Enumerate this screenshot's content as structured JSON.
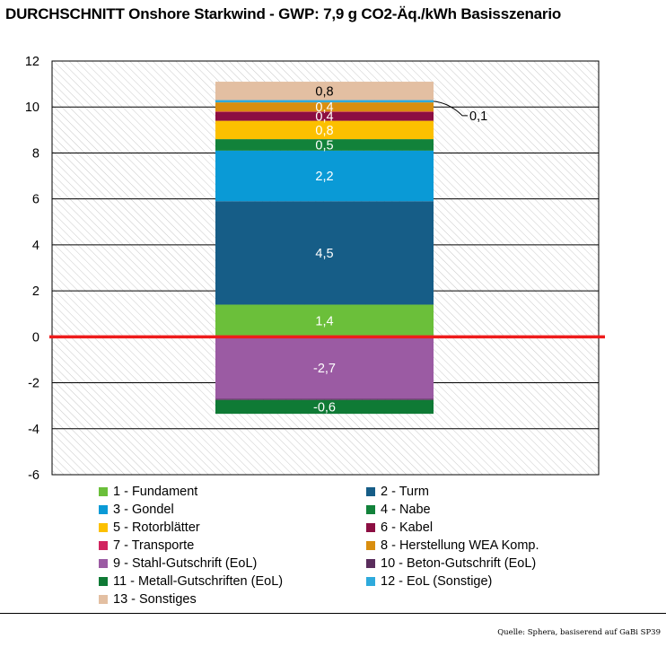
{
  "chart_data": {
    "type": "bar",
    "subtype": "stacked",
    "title": "DURCHSCHNITT Onshore Starkwind - GWP: 7,9 g CO2-Äq./kWh Basisszenario",
    "xlabel": "",
    "ylabel": "",
    "ylim": [
      -6,
      12
    ],
    "yticks": [
      12,
      10,
      8,
      6,
      4,
      2,
      0,
      -2,
      -4,
      -6
    ],
    "grid": true,
    "legend_position": "bottom",
    "series": [
      {
        "name": "1 - Fundament",
        "value": 1.4,
        "label": "1,4",
        "color": "#6bbf3a"
      },
      {
        "name": "2 - Turm",
        "value": 4.5,
        "label": "4,5",
        "color": "#165d87"
      },
      {
        "name": "3 - Gondel",
        "value": 2.2,
        "label": "2,2",
        "color": "#0a9ad6"
      },
      {
        "name": "4 - Nabe",
        "value": 0.5,
        "label": "0,5",
        "color": "#12823a"
      },
      {
        "name": "5 - Rotorblätter",
        "value": 0.8,
        "label": "0,8",
        "color": "#fcc000"
      },
      {
        "name": "6 - Kabel",
        "value": 0.4,
        "label": "0,4",
        "color": "#8c0e42"
      },
      {
        "name": "7 - Transporte",
        "value": 0.0,
        "label": "",
        "color": "#d1245f"
      },
      {
        "name": "8 - Herstellung WEA Komp.",
        "value": 0.4,
        "label": "0,4",
        "color": "#d98e0f"
      },
      {
        "name": "9 - Stahl-Gutschrift (EoL)",
        "value": -2.7,
        "label": "-2,7",
        "color": "#9b5ba3"
      },
      {
        "name": "10 - Beton-Gutschrift (EoL)",
        "value": -0.05,
        "label": "",
        "color": "#5a2d5c"
      },
      {
        "name": "11 - Metall-Gutschriften (EoL)",
        "value": -0.6,
        "label": "-0,6",
        "color": "#0f7a35"
      },
      {
        "name": "12 - EoL (Sonstige)",
        "value": 0.1,
        "label": "0,1",
        "color": "#2eaadc"
      },
      {
        "name": "13 - Sonstiges",
        "value": 0.8,
        "label": "0,8",
        "color": "#e3bfa2"
      }
    ],
    "positive_order": [
      "1 - Fundament",
      "2 - Turm",
      "3 - Gondel",
      "4 - Nabe",
      "5 - Rotorblätter",
      "6 - Kabel",
      "7 - Transporte",
      "8 - Herstellung WEA Komp.",
      "12 - EoL (Sonstige)",
      "13 - Sonstiges"
    ],
    "negative_order": [
      "9 - Stahl-Gutschrift (EoL)",
      "10 - Beton-Gutschrift (EoL)",
      "11 - Metall-Gutschriften (EoL)"
    ],
    "callout": {
      "series": "12 - EoL (Sonstige)",
      "label": "0,1"
    },
    "zero_line_color": "#ee1c1c"
  },
  "source": "Quelle: Sphera, basiserend auf GaBi SP39"
}
